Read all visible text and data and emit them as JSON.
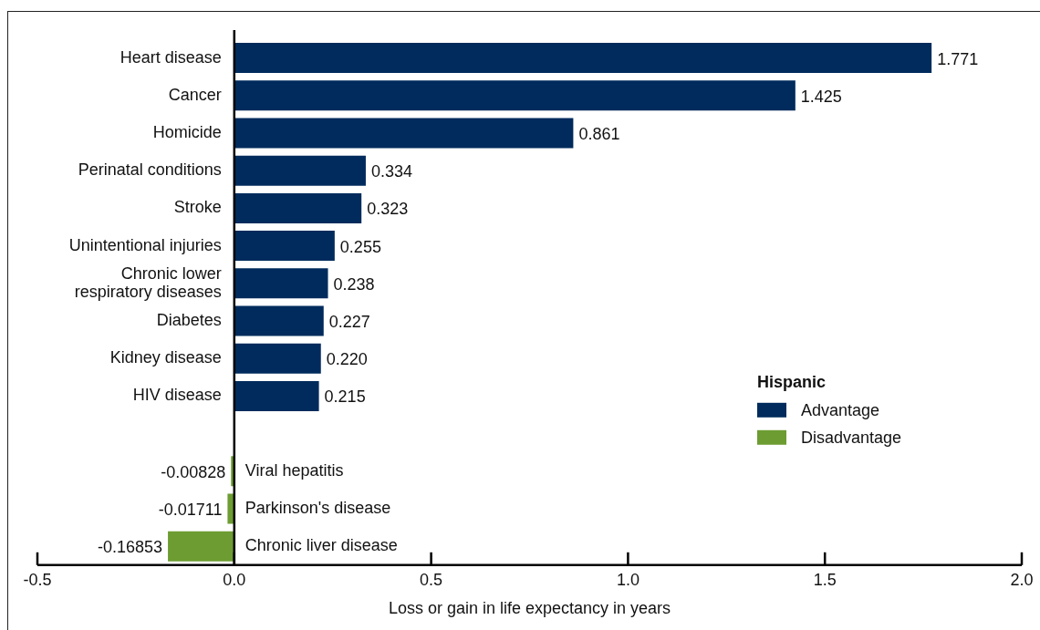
{
  "chart_data": {
    "type": "bar",
    "orientation": "horizontal",
    "xlabel": "Loss or gain in life expectancy in years",
    "categories": [
      "Heart disease",
      "Cancer",
      "Homicide",
      "Perinatal conditions",
      "Stroke",
      "Unintentional injuries",
      "Chronic lower respiratory diseases",
      "Diabetes",
      "Kidney disease",
      "HIV disease",
      null,
      "Viral hepatitis",
      "Parkinson's disease",
      "Chronic liver disease"
    ],
    "series": [
      {
        "name": "Advantage",
        "color": "#002b5c",
        "values": [
          1.771,
          1.425,
          0.861,
          0.334,
          0.323,
          0.255,
          0.238,
          0.227,
          0.22,
          0.215,
          null,
          null,
          null,
          null
        ],
        "value_labels": [
          "1.771",
          "1.425",
          "0.861",
          "0.334",
          "0.323",
          "0.255",
          "0.238",
          "0.227",
          "0.220",
          "0.215",
          null,
          null,
          null,
          null
        ]
      },
      {
        "name": "Disadvantage",
        "color": "#6d9c32",
        "values": [
          null,
          null,
          null,
          null,
          null,
          null,
          null,
          null,
          null,
          null,
          null,
          -0.00828,
          -0.01711,
          -0.16853
        ],
        "value_labels": [
          null,
          null,
          null,
          null,
          null,
          null,
          null,
          null,
          null,
          null,
          null,
          "-0.00828",
          "-0.01711",
          "-0.16853"
        ]
      }
    ],
    "xlim": [
      -0.5,
      2.0
    ],
    "xticks": [
      {
        "value": -0.5,
        "label": "-0.5"
      },
      {
        "value": 0,
        "label": "0.0"
      },
      {
        "value": 0.5,
        "label": "0.5"
      },
      {
        "value": 1.0,
        "label": "1.0"
      },
      {
        "value": 1.5,
        "label": "1.5"
      },
      {
        "value": 2.0,
        "label": "2.0"
      }
    ],
    "grid": false,
    "legend": "bottom right",
    "legend_title": "Hispanic"
  }
}
